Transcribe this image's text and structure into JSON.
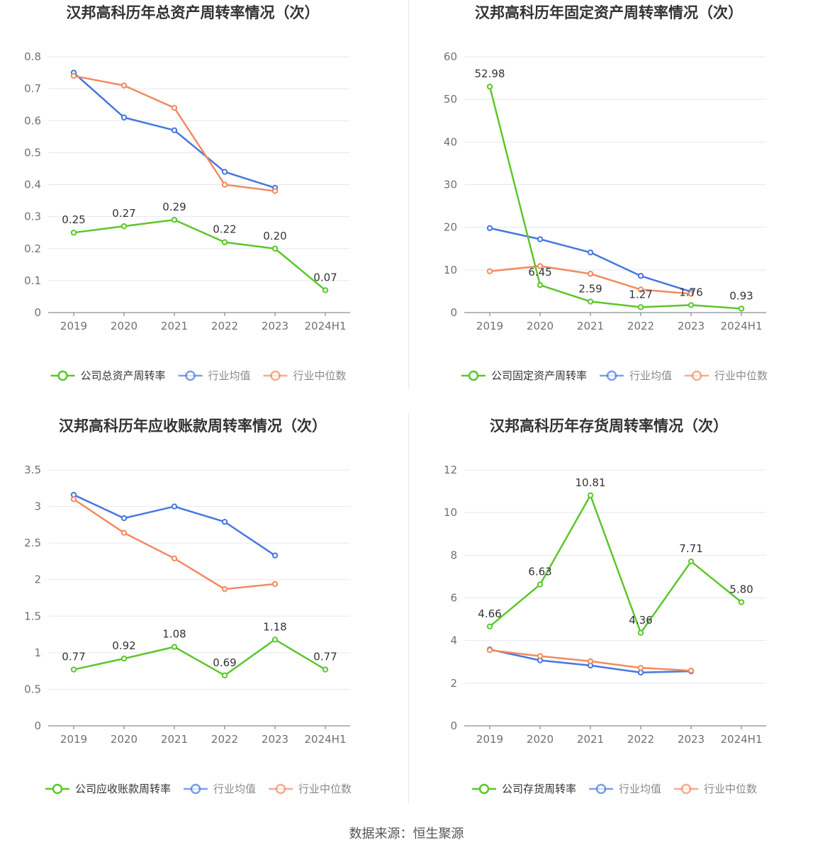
{
  "colors": {
    "company": "#5cc72b",
    "avg": "#4677e0",
    "median": "#f28a62",
    "grid": "#e6e8ef",
    "axis": "#6e7079"
  },
  "source": "数据来源：恒生聚源",
  "chart_data": [
    {
      "type": "line",
      "title": "汉邦高科历年总资产周转率情况（次）",
      "categories": [
        "2019",
        "2020",
        "2021",
        "2022",
        "2023",
        "2024H1"
      ],
      "yticks": [
        "0",
        "0.1",
        "0.2",
        "0.3",
        "0.4",
        "0.5",
        "0.6",
        "0.7",
        "0.8"
      ],
      "ylim": [
        0,
        0.8
      ],
      "series": [
        {
          "name": "公司总资产周转率",
          "values": [
            0.25,
            0.27,
            0.29,
            0.22,
            0.2,
            0.07
          ],
          "labels": [
            "0.25",
            "0.27",
            "0.29",
            "0.22",
            "0.20",
            "0.07"
          ]
        },
        {
          "name": "行业均值",
          "values": [
            0.75,
            0.61,
            0.57,
            0.44,
            0.39,
            null
          ]
        },
        {
          "name": "行业中位数",
          "values": [
            0.74,
            0.71,
            0.64,
            0.4,
            0.38,
            null
          ]
        }
      ]
    },
    {
      "type": "line",
      "title": "汉邦高科历年固定资产周转率情况（次）",
      "categories": [
        "2019",
        "2020",
        "2021",
        "2022",
        "2023",
        "2024H1"
      ],
      "yticks": [
        "0",
        "10",
        "20",
        "30",
        "40",
        "50",
        "60"
      ],
      "ylim": [
        0,
        60
      ],
      "series": [
        {
          "name": "公司固定资产周转率",
          "values": [
            52.98,
            6.45,
            2.59,
            1.27,
            1.76,
            0.93
          ],
          "labels": [
            "52.98",
            "6.45",
            "2.59",
            "1.27",
            "1.76",
            "0.93"
          ]
        },
        {
          "name": "行业均值",
          "values": [
            19.8,
            17.2,
            14.1,
            8.6,
            4.9,
            null
          ]
        },
        {
          "name": "行业中位数",
          "values": [
            9.7,
            10.9,
            9.1,
            5.4,
            4.4,
            null
          ]
        }
      ]
    },
    {
      "type": "line",
      "title": "汉邦高科历年应收账款周转率情况（次）",
      "categories": [
        "2019",
        "2020",
        "2021",
        "2022",
        "2023",
        "2024H1"
      ],
      "yticks": [
        "0",
        "0.5",
        "1",
        "1.5",
        "2",
        "2.5",
        "3",
        "3.5"
      ],
      "ylim": [
        0,
        3.5
      ],
      "series": [
        {
          "name": "公司应收账款周转率",
          "values": [
            0.77,
            0.92,
            1.08,
            0.69,
            1.18,
            0.77
          ],
          "labels": [
            "0.77",
            "0.92",
            "1.08",
            "0.69",
            "1.18",
            "0.77"
          ]
        },
        {
          "name": "行业均值",
          "values": [
            3.16,
            2.84,
            3.0,
            2.79,
            2.33,
            null
          ]
        },
        {
          "name": "行业中位数",
          "values": [
            3.1,
            2.64,
            2.29,
            1.87,
            1.94,
            null
          ]
        }
      ]
    },
    {
      "type": "line",
      "title": "汉邦高科历年存货周转率情况（次）",
      "categories": [
        "2019",
        "2020",
        "2021",
        "2022",
        "2023",
        "2024H1"
      ],
      "yticks": [
        "0",
        "2",
        "4",
        "6",
        "8",
        "10",
        "12"
      ],
      "ylim": [
        0,
        12
      ],
      "series": [
        {
          "name": "公司存货周转率",
          "values": [
            4.66,
            6.63,
            10.81,
            4.36,
            7.71,
            5.8
          ],
          "labels": [
            "4.66",
            "6.63",
            "10.81",
            "4.36",
            "7.71",
            "5.80"
          ]
        },
        {
          "name": "行业均值",
          "values": [
            3.58,
            3.07,
            2.83,
            2.5,
            2.56,
            null
          ]
        },
        {
          "name": "行业中位数",
          "values": [
            3.55,
            3.27,
            3.03,
            2.72,
            2.59,
            null
          ]
        }
      ]
    }
  ]
}
